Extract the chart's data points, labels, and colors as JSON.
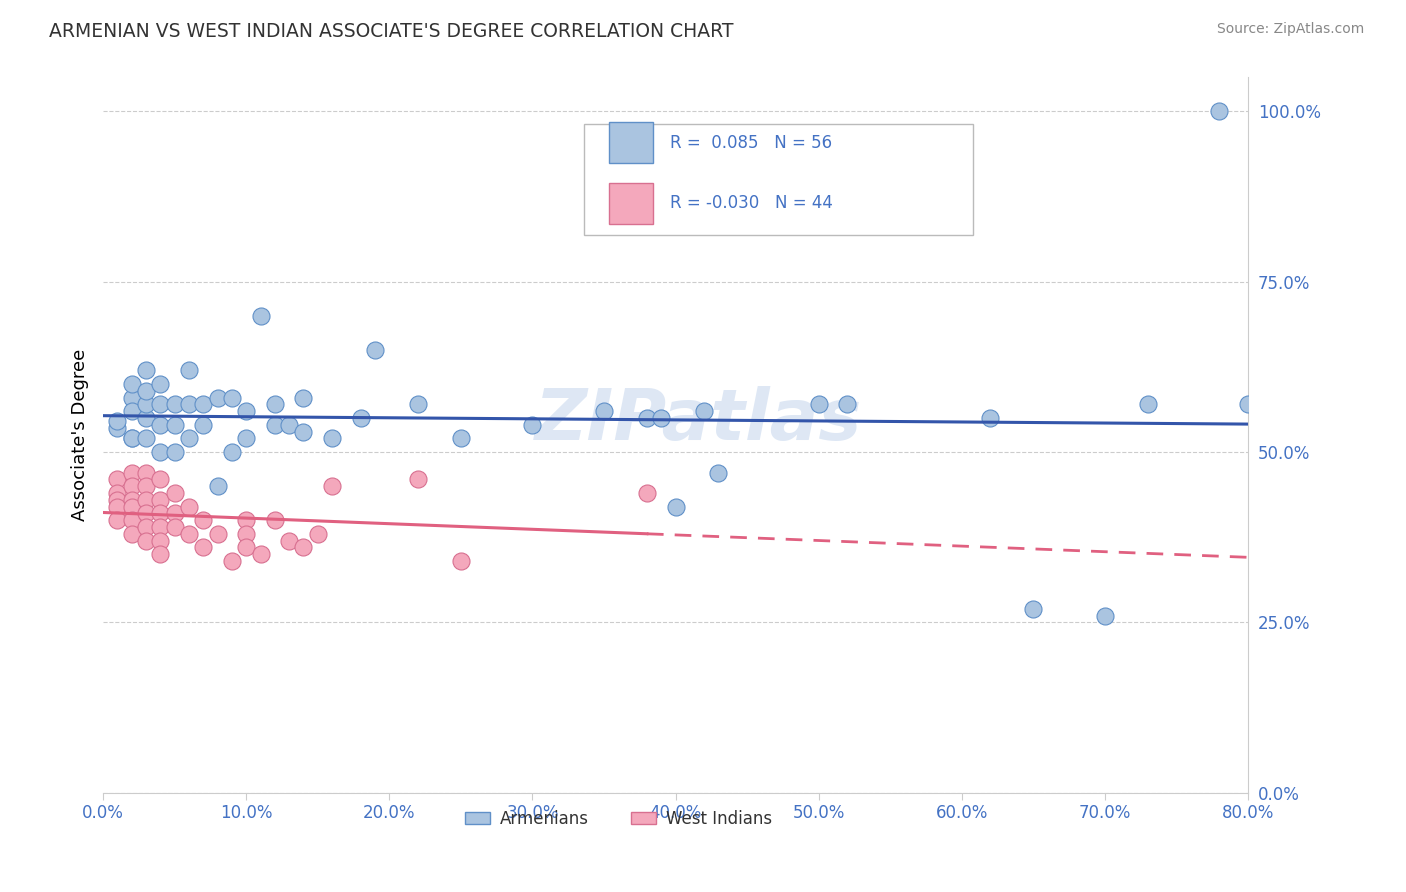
{
  "title": "ARMENIAN VS WEST INDIAN ASSOCIATE'S DEGREE CORRELATION CHART",
  "source": "Source: ZipAtlas.com",
  "ylabel": "Associate's Degree",
  "xlim": [
    0.0,
    0.8
  ],
  "ylim": [
    0.0,
    1.05
  ],
  "R_armenian": 0.085,
  "N_armenian": 56,
  "R_west_indian": -0.03,
  "N_west_indian": 44,
  "color_armenian": "#aac4e0",
  "color_west_indian": "#f4a8bc",
  "edge_armenian": "#6090c8",
  "edge_west_indian": "#d87090",
  "line_color_armenian": "#3355aa",
  "line_color_west_indian": "#e06080",
  "watermark": "ZIPatlas",
  "armenian_x": [
    0.01,
    0.01,
    0.02,
    0.02,
    0.02,
    0.02,
    0.02,
    0.03,
    0.03,
    0.03,
    0.03,
    0.03,
    0.04,
    0.04,
    0.04,
    0.04,
    0.05,
    0.05,
    0.05,
    0.06,
    0.06,
    0.06,
    0.07,
    0.07,
    0.08,
    0.08,
    0.09,
    0.09,
    0.1,
    0.1,
    0.11,
    0.12,
    0.12,
    0.13,
    0.14,
    0.14,
    0.16,
    0.18,
    0.19,
    0.22,
    0.25,
    0.3,
    0.35,
    0.38,
    0.39,
    0.4,
    0.42,
    0.43,
    0.5,
    0.52,
    0.62,
    0.65,
    0.7,
    0.73,
    0.78,
    0.8
  ],
  "armenian_y": [
    0.535,
    0.545,
    0.58,
    0.52,
    0.56,
    0.6,
    0.52,
    0.52,
    0.55,
    0.57,
    0.59,
    0.62,
    0.5,
    0.54,
    0.57,
    0.6,
    0.5,
    0.54,
    0.57,
    0.52,
    0.57,
    0.62,
    0.54,
    0.57,
    0.45,
    0.58,
    0.5,
    0.58,
    0.52,
    0.56,
    0.7,
    0.54,
    0.57,
    0.54,
    0.53,
    0.58,
    0.52,
    0.55,
    0.65,
    0.57,
    0.52,
    0.54,
    0.56,
    0.55,
    0.55,
    0.42,
    0.56,
    0.47,
    0.57,
    0.57,
    0.55,
    0.27,
    0.26,
    0.57,
    1.0,
    0.57
  ],
  "west_indian_x": [
    0.01,
    0.01,
    0.01,
    0.01,
    0.01,
    0.02,
    0.02,
    0.02,
    0.02,
    0.02,
    0.02,
    0.03,
    0.03,
    0.03,
    0.03,
    0.03,
    0.03,
    0.04,
    0.04,
    0.04,
    0.04,
    0.04,
    0.04,
    0.05,
    0.05,
    0.05,
    0.06,
    0.06,
    0.07,
    0.07,
    0.08,
    0.09,
    0.1,
    0.1,
    0.1,
    0.11,
    0.12,
    0.13,
    0.14,
    0.15,
    0.16,
    0.22,
    0.25,
    0.38
  ],
  "west_indian_y": [
    0.46,
    0.44,
    0.43,
    0.42,
    0.4,
    0.47,
    0.45,
    0.43,
    0.42,
    0.4,
    0.38,
    0.47,
    0.45,
    0.43,
    0.41,
    0.39,
    0.37,
    0.46,
    0.43,
    0.41,
    0.39,
    0.37,
    0.35,
    0.44,
    0.41,
    0.39,
    0.42,
    0.38,
    0.4,
    0.36,
    0.38,
    0.34,
    0.4,
    0.38,
    0.36,
    0.35,
    0.4,
    0.37,
    0.36,
    0.38,
    0.45,
    0.46,
    0.34,
    0.44
  ]
}
